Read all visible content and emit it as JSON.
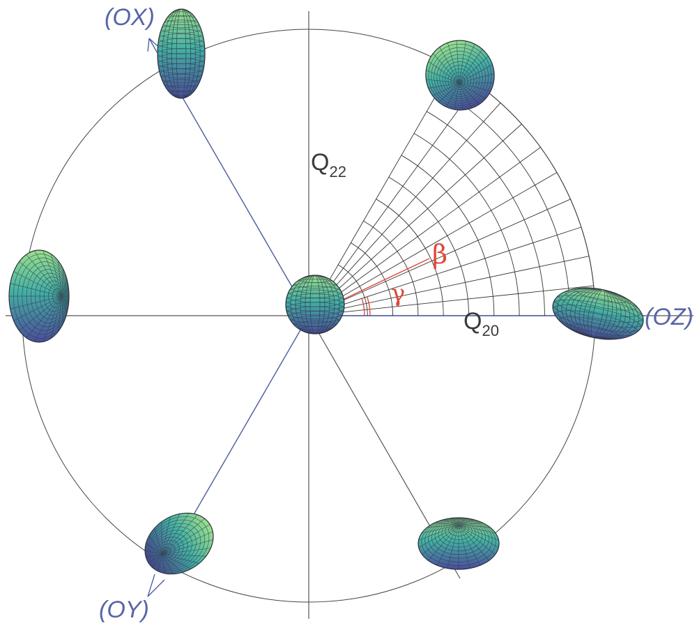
{
  "diagram": {
    "axes": {
      "horizontal": {
        "main": "Q",
        "sub": "20"
      },
      "vertical": {
        "main": "Q",
        "sub": "22"
      }
    },
    "angle_labels": {
      "beta": "β",
      "gamma": "γ"
    },
    "reference_labels": {
      "oz": "(OZ)",
      "ox": "(OX)",
      "oy": "(OY)"
    }
  },
  "colors": {
    "circle": "#444444",
    "grid": "#333333",
    "blue_line": "#4a5aa0",
    "angle_red": "#e0463a",
    "shape_top": "#8fd98a",
    "shape_mid": "#3aa6a6",
    "shape_bottom": "#4a4f9a"
  }
}
